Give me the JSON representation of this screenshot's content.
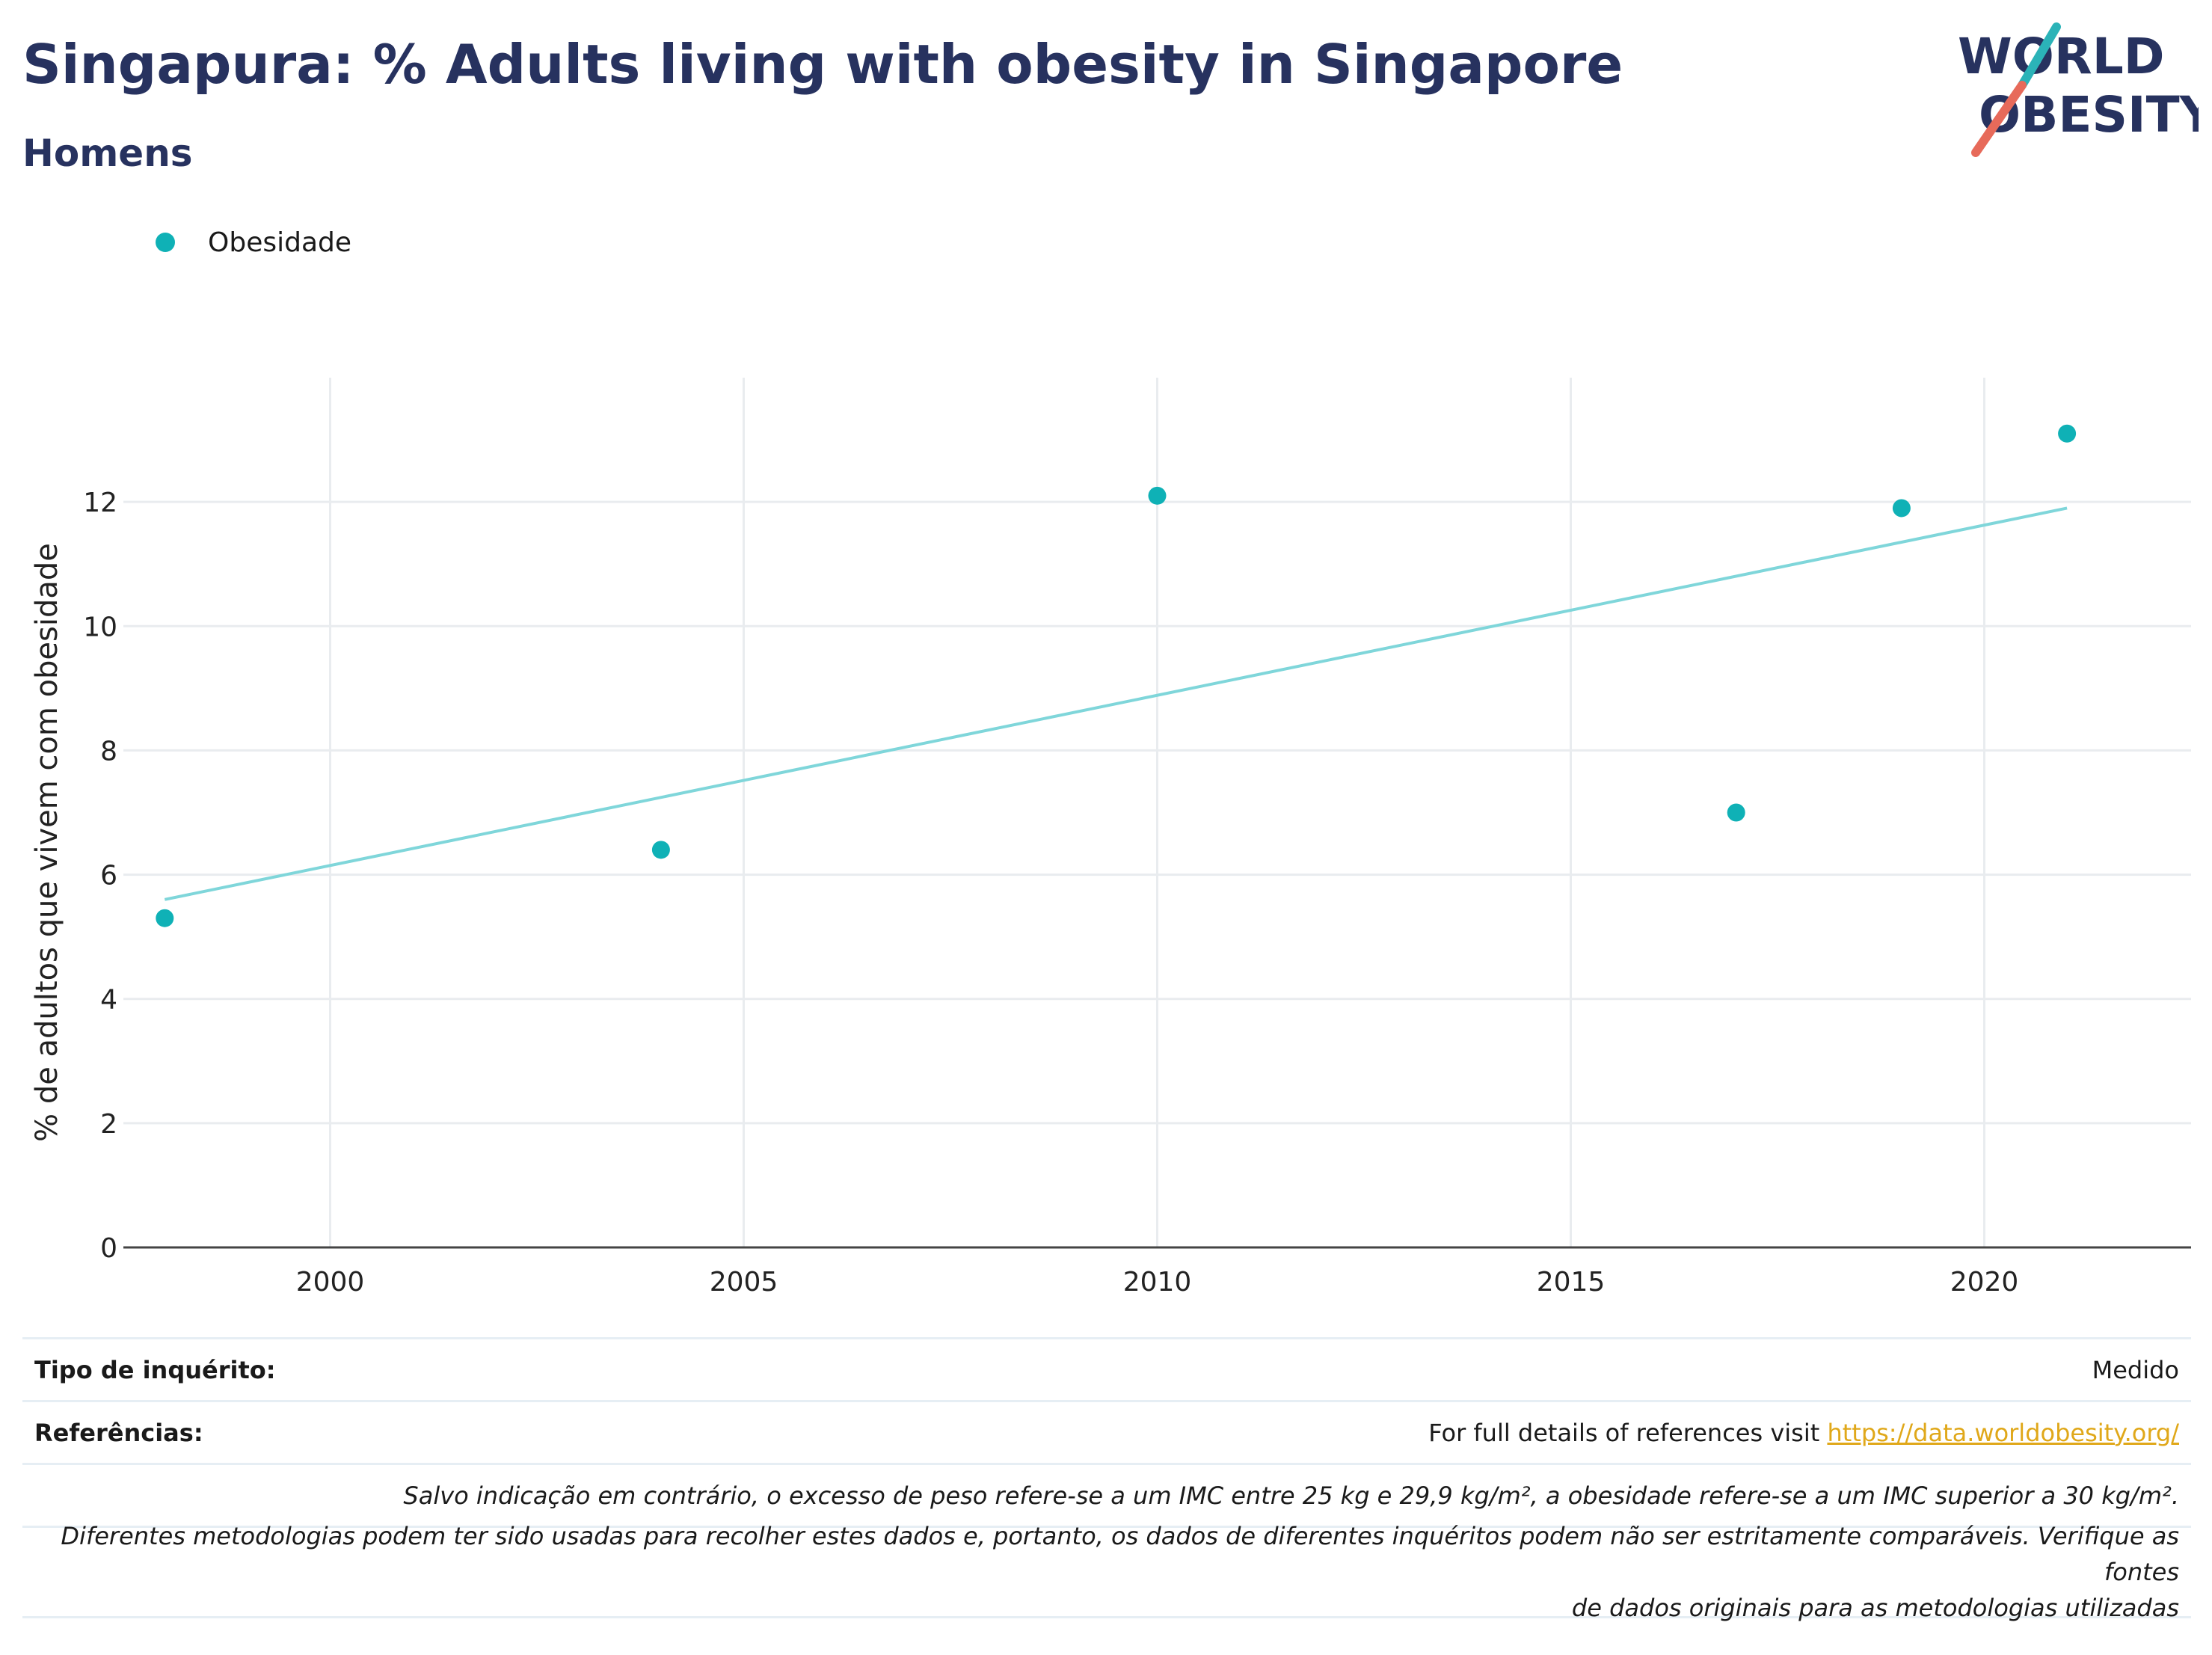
{
  "header": {
    "title": "Singapura: % Adults living with obesity in Singapore",
    "subtitle": "Homens"
  },
  "logo": {
    "line1": "WORLD",
    "line2": "OBESITY",
    "text_color": "#27325f",
    "accent_teal": "#2bb3b8",
    "accent_red": "#e76a5a"
  },
  "legend": {
    "label": "Obesidade",
    "color": "#0fb1b6"
  },
  "chart_data": {
    "type": "scatter",
    "ylabel": "% de adultos que vivem com obesidade",
    "xlabel": "",
    "xlim": [
      1997.5,
      2022.5
    ],
    "ylim": [
      0,
      14
    ],
    "x_ticks": [
      2000,
      2005,
      2010,
      2015,
      2020
    ],
    "y_ticks": [
      0,
      2,
      4,
      6,
      8,
      10,
      12
    ],
    "grid": true,
    "legend_position": "top-left",
    "series": [
      {
        "name": "Obesidade",
        "color": "#0fb1b6",
        "points": [
          {
            "x": 1998,
            "y": 5.3
          },
          {
            "x": 2004,
            "y": 6.4
          },
          {
            "x": 2010,
            "y": 12.1
          },
          {
            "x": 2017,
            "y": 7.0
          },
          {
            "x": 2019,
            "y": 11.9
          },
          {
            "x": 2021,
            "y": 13.1
          }
        ]
      }
    ],
    "trendline": {
      "color": "#7fd6da",
      "start": {
        "x": 1998,
        "y": 5.6
      },
      "end": {
        "x": 2021,
        "y": 11.9
      }
    }
  },
  "info": {
    "survey_type_label": "Tipo de inquérito:",
    "survey_type_value": "Medido",
    "references_label": "Referências:",
    "references_text": "For full details of references visit ",
    "references_link": "https://data.worldobesity.org/",
    "bmi_note": "Salvo indicação em contrário, o excesso de peso refere-se a um IMC entre 25 kg e 29,9 kg/m², a obesidade refere-se a um IMC superior a 30 kg/m².",
    "method_note_line1": "Diferentes metodologias podem ter sido usadas para recolher estes dados e, portanto, os dados de diferentes inquéritos podem não ser estritamente comparáveis. Verifique as fontes",
    "method_note_line2": "de dados originais para as metodologias utilizadas"
  }
}
